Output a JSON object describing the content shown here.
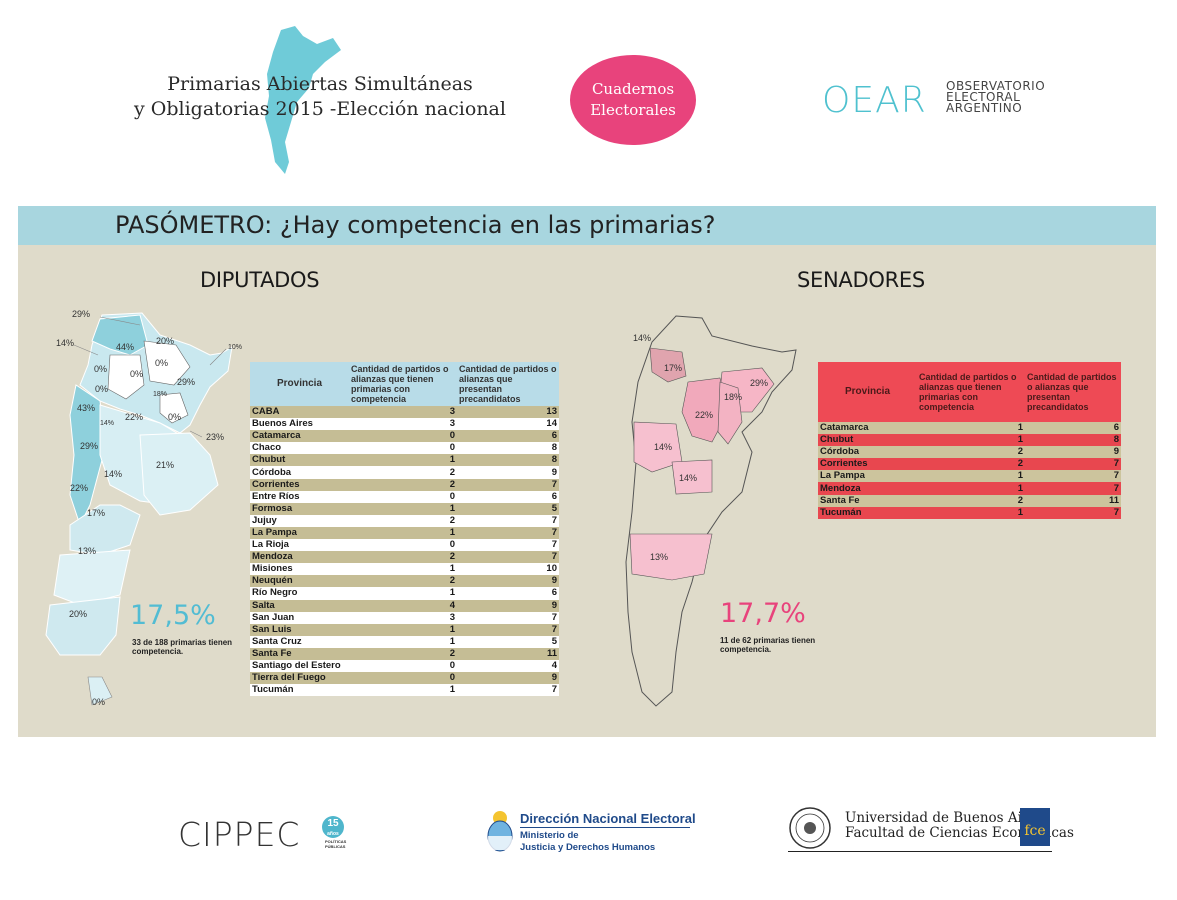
{
  "header": {
    "title_line1": "Primarias Abiertas Simultáneas",
    "title_line2": "y Obligatorias 2015 -Elección nacional",
    "pill_line1": "Cuadernos",
    "pill_line2": "Electorales",
    "oear_mark": "OEAR",
    "oear_line1": "OBSERVATORIO",
    "oear_line2": "ELECTORAL",
    "oear_line3": "ARGENTINO"
  },
  "banner": "PASÓMETRO: ¿Hay competencia en las primarias?",
  "colors": {
    "teal": "#a8d6df",
    "pink": "#e8437c",
    "red": "#ee4a55",
    "khaki": "#c5bd95"
  },
  "diputados": {
    "title": "DIPUTADOS",
    "headers": [
      "Provincia",
      "Cantidad de partidos o alianzas que tienen primarias con competencia",
      "Cantidad de partidos o alianzas que presentan precandidatos"
    ],
    "rows": [
      [
        "CABA",
        "3",
        "13"
      ],
      [
        "Buenos Aires",
        "3",
        "14"
      ],
      [
        "Catamarca",
        "0",
        "6"
      ],
      [
        "Chaco",
        "0",
        "8"
      ],
      [
        "Chubut",
        "1",
        "8"
      ],
      [
        "Córdoba",
        "2",
        "9"
      ],
      [
        "Corrientes",
        "2",
        "7"
      ],
      [
        "Entre Ríos",
        "0",
        "6"
      ],
      [
        "Formosa",
        "1",
        "5"
      ],
      [
        "Jujuy",
        "2",
        "7"
      ],
      [
        "La Pampa",
        "1",
        "7"
      ],
      [
        "La Rioja",
        "0",
        "7"
      ],
      [
        "Mendoza",
        "2",
        "7"
      ],
      [
        "Misiones",
        "1",
        "10"
      ],
      [
        "Neuquén",
        "2",
        "9"
      ],
      [
        "Río Negro",
        "1",
        "6"
      ],
      [
        "Salta",
        "4",
        "9"
      ],
      [
        "San Juan",
        "3",
        "7"
      ],
      [
        "San Luis",
        "1",
        "7"
      ],
      [
        "Santa Cruz",
        "1",
        "5"
      ],
      [
        "Santa Fe",
        "2",
        "11"
      ],
      [
        "Santiago del Estero",
        "0",
        "4"
      ],
      [
        "Tierra del Fuego",
        "0",
        "9"
      ],
      [
        "Tucumán",
        "1",
        "7"
      ]
    ],
    "big_pct": "17,5%",
    "note_line1": "33 de 188 primarias tienen",
    "note_line2": "competencia.",
    "map_labels": [
      "29%",
      "14%",
      "44%",
      "20%",
      "10%",
      "0%",
      "0%",
      "0%",
      "0%",
      "29%",
      "43%",
      "18%",
      "22%",
      "0%",
      "14%",
      "23%",
      "29%",
      "21%",
      "14%",
      "22%",
      "17%",
      "13%",
      "20%",
      "0%"
    ]
  },
  "senadores": {
    "title": "SENADORES",
    "headers": [
      "Provincia",
      "Cantidad de partidos o alianzas que tienen primarias con competencia",
      "Cantidad de partidos o alianzas que presentan precandidatos"
    ],
    "rows": [
      [
        "Catamarca",
        "1",
        "6"
      ],
      [
        "Chubut",
        "1",
        "8"
      ],
      [
        "Córdoba",
        "2",
        "9"
      ],
      [
        "Corrientes",
        "2",
        "7"
      ],
      [
        "La Pampa",
        "1",
        "7"
      ],
      [
        "Mendoza",
        "1",
        "7"
      ],
      [
        "Santa Fe",
        "2",
        "11"
      ],
      [
        "Tucumán",
        "1",
        "7"
      ]
    ],
    "big_pct": "17,7%",
    "note_line1": "11 de 62 primarias tienen",
    "note_line2": "competencia.",
    "map_labels": [
      "14%",
      "17%",
      "29%",
      "18%",
      "22%",
      "14%",
      "14%",
      "13%"
    ]
  },
  "footer": {
    "cippec": "CIPPEC",
    "cippec_badge": "15",
    "cippec_badge_sub": "años",
    "cippec_sub1": "POLÍTICAS",
    "cippec_sub2": "PÚBLICAS",
    "dne_title": "Dirección Nacional Electoral",
    "dne_line1": "Ministerio de",
    "dne_line2": "Justicia y Derechos Humanos",
    "uba_line1": "Universidad de Buenos Aires",
    "uba_line2": "Facultad de Ciencias Económicas",
    "fce": "fce"
  }
}
